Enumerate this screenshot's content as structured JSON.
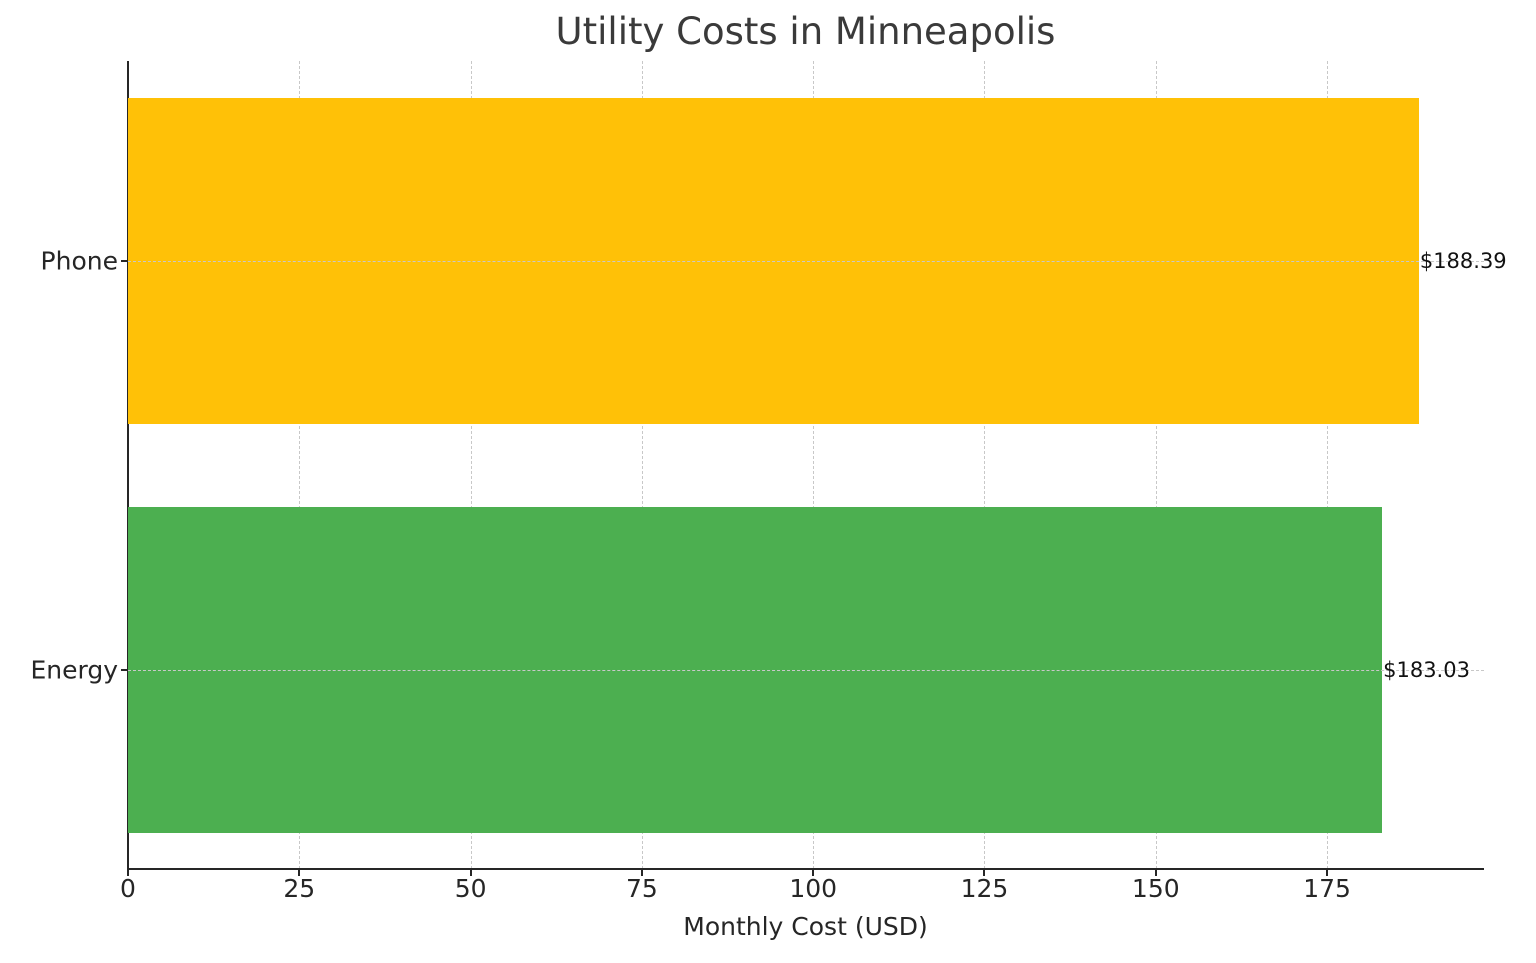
{
  "chart_data": {
    "type": "bar",
    "orientation": "horizontal",
    "title": "Utility Costs in Minneapolis",
    "xlabel": "Monthly Cost (USD)",
    "ylabel": "",
    "categories": [
      "Phone",
      "Energy"
    ],
    "values": [
      188.39,
      183.03
    ],
    "value_labels": [
      "$188.39",
      "$183.03"
    ],
    "colors": [
      "#FFC107",
      "#4CAF50"
    ],
    "xlim": [
      0,
      197.9
    ],
    "xticks": [
      0,
      25,
      50,
      75,
      100,
      125,
      150,
      175
    ],
    "grid": true,
    "grid_style": "dashed",
    "legend": null
  },
  "title": "Utility Costs in Minneapolis",
  "x_axis": {
    "title": "Monthly Cost (USD)",
    "ticks": [
      "0",
      "25",
      "50",
      "75",
      "100",
      "125",
      "150",
      "175"
    ]
  },
  "y_axis": {
    "ticks": [
      "Phone",
      "Energy"
    ]
  },
  "bars": [
    {
      "label": "Phone",
      "value": 188.39,
      "value_label": "$188.39",
      "color": "#FFC107"
    },
    {
      "label": "Energy",
      "value": 183.03,
      "value_label": "$183.03",
      "color": "#4CAF50"
    }
  ]
}
